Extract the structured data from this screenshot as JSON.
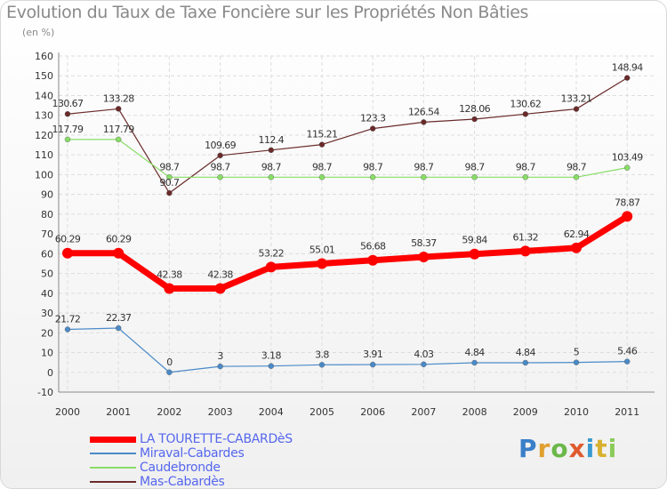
{
  "chart_data": {
    "type": "line",
    "title": "Evolution du Taux de Taxe Foncière sur les Propriétés Non Bâties",
    "ylabel": "(en %)",
    "xlabel": "",
    "ylim": [
      -10,
      160
    ],
    "yticks": [
      "-10",
      "0",
      "10",
      "20",
      "30",
      "40",
      "50",
      "60",
      "70",
      "80",
      "90",
      "100",
      "110",
      "120",
      "130",
      "140",
      "150",
      "160"
    ],
    "x": [
      "2000",
      "2001",
      "2002",
      "2003",
      "2004",
      "2005",
      "2006",
      "2007",
      "2008",
      "2009",
      "2010",
      "2011"
    ],
    "grid": true,
    "series": [
      {
        "name": "LA TOURETTE-CABARDèS",
        "color": "#ff0000",
        "values": [
          60.29,
          60.29,
          42.38,
          42.38,
          53.22,
          55.01,
          56.68,
          58.37,
          59.84,
          61.32,
          62.94,
          78.87
        ],
        "labels": [
          "60.29",
          "60.29",
          "42.38",
          "42.38",
          "53.22",
          "55.01",
          "56.68",
          "58.37",
          "59.84",
          "61.32",
          "62.94",
          "78.87"
        ]
      },
      {
        "name": "Miraval-Cabardes",
        "color": "#4a8ac8",
        "values": [
          21.72,
          22.37,
          0,
          3,
          3.18,
          3.8,
          3.91,
          4.03,
          4.84,
          4.84,
          5,
          5.46
        ],
        "labels": [
          "21.72",
          "22.37",
          "0",
          "3",
          "3.18",
          "3.8",
          "3.91",
          "4.03",
          "4.84",
          "4.84",
          "5",
          "5.46"
        ]
      },
      {
        "name": "Caudebronde",
        "color": "#88dd66",
        "values": [
          117.79,
          117.79,
          98.7,
          98.7,
          98.7,
          98.7,
          98.7,
          98.7,
          98.7,
          98.7,
          98.7,
          103.49
        ],
        "labels": [
          "117.79",
          "117.79",
          "98.7",
          "98.7",
          "98.7",
          "98.7",
          "98.7",
          "98.7",
          "98.7",
          "98.7",
          "98.7",
          "103.49"
        ]
      },
      {
        "name": "Mas-Cabardès",
        "color": "#6a2a2a",
        "values": [
          130.67,
          133.28,
          90.7,
          109.69,
          112.4,
          115.21,
          123.3,
          126.54,
          128.06,
          130.62,
          133.21,
          148.94
        ],
        "labels": [
          "130.67",
          "133.28",
          "90.7",
          "109.69",
          "112.4",
          "115.21",
          "123.3",
          "126.54",
          "128.06",
          "130.62",
          "133.21",
          "148.94"
        ]
      }
    ]
  },
  "logo": {
    "letters": [
      "P",
      "r",
      "o",
      "x",
      "i",
      "t",
      "i"
    ]
  }
}
